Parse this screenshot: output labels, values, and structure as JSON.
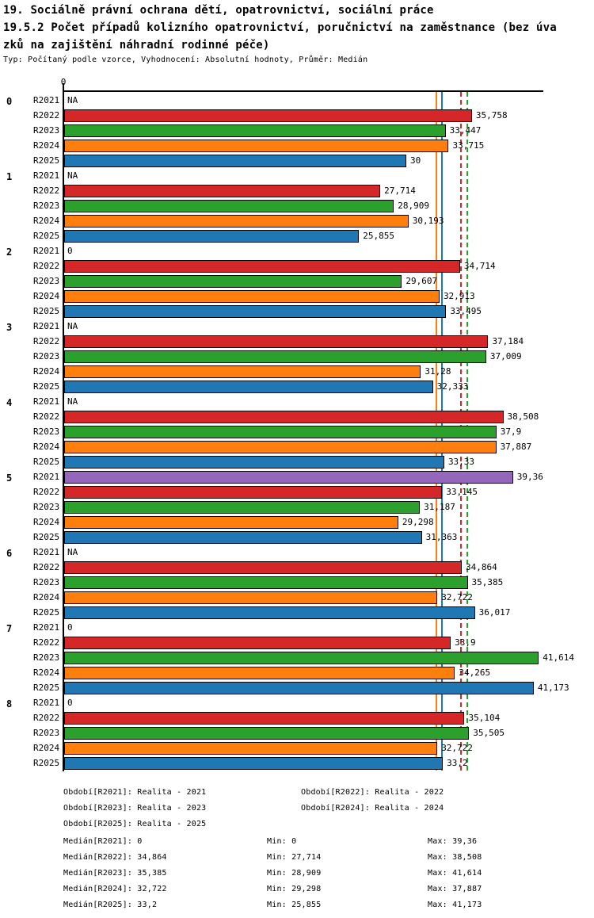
{
  "title": {
    "line1": "19. Sociálně právní ochrana dětí, opatrovnictví, sociální práce",
    "line2": "19.5.2 Počet případů kolizního opatrovnictví, poručnictví na zaměstnance (bez úva",
    "line3": "zků na zajištění náhradní rodinné péče)",
    "meta": "Typ: Počítaný podle vzorce, Vyhodnocení: Absolutní hodnoty, Průměr: Medián"
  },
  "chart_data": {
    "type": "bar",
    "orientation": "horizontal",
    "x_axis": {
      "origin_label": "0",
      "min": 0,
      "max": 42,
      "gridlines": false
    },
    "series": [
      {
        "name": "R2021",
        "color": "#9467bd"
      },
      {
        "name": "R2022",
        "color": "#d62728"
      },
      {
        "name": "R2023",
        "color": "#2ca02c"
      },
      {
        "name": "R2024",
        "color": "#ff7f0e"
      },
      {
        "name": "R2025",
        "color": "#1f77b4"
      }
    ],
    "groups": [
      {
        "label": "0",
        "values": [
          null,
          35.758,
          33.447,
          33.715,
          30
        ],
        "displays": [
          "NA",
          "35,758",
          "33,447",
          "33,715",
          "30"
        ]
      },
      {
        "label": "1",
        "values": [
          null,
          27.714,
          28.909,
          30.193,
          25.855
        ],
        "displays": [
          "NA",
          "27,714",
          "28,909",
          "30,193",
          "25,855"
        ]
      },
      {
        "label": "2",
        "values": [
          0,
          34.714,
          29.607,
          32.913,
          33.495
        ],
        "displays": [
          "0",
          "34,714",
          "29,607",
          "32,913",
          "33,495"
        ]
      },
      {
        "label": "3",
        "values": [
          null,
          37.184,
          37.009,
          31.28,
          32.333
        ],
        "displays": [
          "NA",
          "37,184",
          "37,009",
          "31,28",
          "32,333"
        ]
      },
      {
        "label": "4",
        "values": [
          null,
          38.508,
          37.9,
          37.887,
          33.33
        ],
        "displays": [
          "NA",
          "38,508",
          "37,9",
          "37,887",
          "33,33"
        ]
      },
      {
        "label": "5",
        "values": [
          39.36,
          33.145,
          31.187,
          29.298,
          31.363
        ],
        "displays": [
          "39,36",
          "33,145",
          "31,187",
          "29,298",
          "31,363"
        ]
      },
      {
        "label": "6",
        "values": [
          null,
          34.864,
          35.385,
          32.722,
          36.017
        ],
        "displays": [
          "NA",
          "34,864",
          "35,385",
          "32,722",
          "36,017"
        ]
      },
      {
        "label": "7",
        "values": [
          0,
          33.9,
          41.614,
          34.265,
          41.173
        ],
        "displays": [
          "0",
          "33,9",
          "41,614",
          "34,265",
          "41,173"
        ]
      },
      {
        "label": "8",
        "values": [
          0,
          35.104,
          35.505,
          32.722,
          33.2
        ],
        "displays": [
          "0",
          "35,104",
          "35,505",
          "32,722",
          "33,2"
        ]
      }
    ],
    "reference_lines": [
      {
        "name": "median-r2024",
        "value": 32.722,
        "color": "#ff7f0e",
        "style": "solid"
      },
      {
        "name": "median-r2025",
        "value": 33.2,
        "color": "#1f77b4",
        "style": "solid"
      },
      {
        "name": "median-r2022",
        "value": 34.864,
        "color": "#d62728",
        "style": "dashed"
      },
      {
        "name": "median-r2023",
        "value": 35.385,
        "color": "#2ca02c",
        "style": "dashed"
      }
    ]
  },
  "legend": {
    "period_rows": [
      {
        "left": "Období[R2021]: Realita - 2021",
        "right": "Období[R2022]: Realita - 2022"
      },
      {
        "left": "Období[R2023]: Realita - 2023",
        "right": "Období[R2024]: Realita - 2024"
      },
      {
        "left": "Období[R2025]: Realita - 2025",
        "right": ""
      }
    ],
    "stat_rows": [
      {
        "median": "Medián[R2021]: 0",
        "min": "Min: 0",
        "max": "Max: 39,36"
      },
      {
        "median": "Medián[R2022]: 34,864",
        "min": "Min: 27,714",
        "max": "Max: 38,508"
      },
      {
        "median": "Medián[R2023]: 35,385",
        "min": "Min: 28,909",
        "max": "Max: 41,614"
      },
      {
        "median": "Medián[R2024]: 32,722",
        "min": "Min: 29,298",
        "max": "Max: 37,887"
      },
      {
        "median": "Medián[R2025]: 33,2",
        "min": "Min: 25,855",
        "max": "Max: 41,173"
      }
    ]
  }
}
